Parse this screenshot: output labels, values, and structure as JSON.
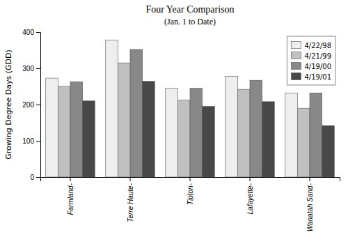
{
  "chart_data": {
    "type": "bar",
    "title": "Four Year Comparison",
    "subtitle": "(Jan. 1 to Date)",
    "ylabel": "Growing Degree Days (GDD)",
    "categories": [
      "Farmland-",
      "Terre Haute-",
      "Tipton-",
      "Lafayette-",
      "Wanatah Sand-"
    ],
    "series": [
      {
        "name": "4/22/98",
        "color": "#eeeeee",
        "values": [
          273,
          378,
          245,
          278,
          232
        ]
      },
      {
        "name": "4/21/99",
        "color": "#c0c0c0",
        "values": [
          250,
          315,
          212,
          242,
          190
        ]
      },
      {
        "name": "4/19/00",
        "color": "#888888",
        "values": [
          263,
          352,
          245,
          267,
          232
        ]
      },
      {
        "name": "4/19/01",
        "color": "#484848",
        "values": [
          210,
          264,
          195,
          208,
          142
        ]
      }
    ],
    "ylim": [
      0,
      400
    ],
    "yticks": [
      0,
      100,
      200,
      300,
      400
    ],
    "grid": false,
    "legend": "upper right"
  }
}
